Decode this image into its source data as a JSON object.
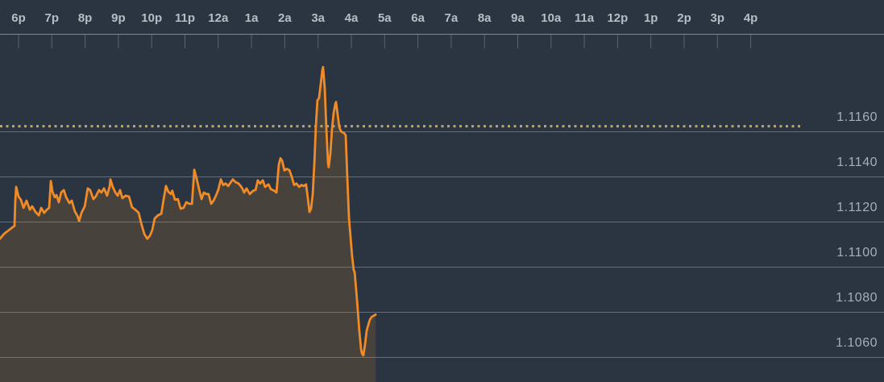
{
  "chart_data": {
    "type": "area",
    "grid": "horizontal",
    "legend": "none",
    "x_axis": {
      "position": "top",
      "tick_interval": "1 hour",
      "tick_labels": [
        "6p",
        "7p",
        "8p",
        "9p",
        "10p",
        "11p",
        "12a",
        "1a",
        "2a",
        "3a",
        "4a",
        "5a",
        "6a",
        "7a",
        "8a",
        "9a",
        "10a",
        "11a",
        "12p",
        "1p",
        "2p",
        "3p",
        "4p"
      ]
    },
    "y_axis": {
      "position": "right",
      "tick_step": 0.002,
      "tick_labels": [
        "1.1160",
        "1.1140",
        "1.1120",
        "1.1100",
        "1.1080",
        "1.1060"
      ]
    },
    "ylim": [
      1.1049,
      1.1203
    ],
    "reference_line": {
      "value": 1.11623,
      "style": "dotted"
    },
    "series": [
      {
        "name": "price",
        "x_unit": "hours_from_6pm",
        "points": [
          [
            -0.56,
            1.11124
          ],
          [
            -0.44,
            1.11145
          ],
          [
            -0.31,
            1.1116
          ],
          [
            -0.19,
            1.11174
          ],
          [
            -0.12,
            1.11181
          ],
          [
            -0.1,
            1.11286
          ],
          [
            -0.07,
            1.11354
          ],
          [
            0.0,
            1.11311
          ],
          [
            0.07,
            1.11297
          ],
          [
            0.15,
            1.11261
          ],
          [
            0.24,
            1.11293
          ],
          [
            0.34,
            1.11253
          ],
          [
            0.41,
            1.11268
          ],
          [
            0.51,
            1.11243
          ],
          [
            0.61,
            1.11228
          ],
          [
            0.68,
            1.11261
          ],
          [
            0.77,
            1.11239
          ],
          [
            0.85,
            1.11253
          ],
          [
            0.92,
            1.11261
          ],
          [
            0.97,
            1.1138
          ],
          [
            1.02,
            1.11333
          ],
          [
            1.09,
            1.11308
          ],
          [
            1.14,
            1.11318
          ],
          [
            1.21,
            1.11286
          ],
          [
            1.28,
            1.11329
          ],
          [
            1.36,
            1.1134
          ],
          [
            1.43,
            1.11308
          ],
          [
            1.53,
            1.11282
          ],
          [
            1.6,
            1.11293
          ],
          [
            1.69,
            1.11246
          ],
          [
            1.77,
            1.11225
          ],
          [
            1.82,
            1.11203
          ],
          [
            1.89,
            1.11239
          ],
          [
            1.99,
            1.11268
          ],
          [
            2.08,
            1.11347
          ],
          [
            2.15,
            1.1134
          ],
          [
            2.25,
            1.113
          ],
          [
            2.32,
            1.11311
          ],
          [
            2.42,
            1.1134
          ],
          [
            2.49,
            1.11329
          ],
          [
            2.57,
            1.11347
          ],
          [
            2.66,
            1.11315
          ],
          [
            2.74,
            1.11358
          ],
          [
            2.76,
            1.11387
          ],
          [
            2.83,
            1.11354
          ],
          [
            2.91,
            1.11329
          ],
          [
            2.98,
            1.11315
          ],
          [
            3.05,
            1.1134
          ],
          [
            3.12,
            1.11304
          ],
          [
            3.22,
            1.11315
          ],
          [
            3.32,
            1.11311
          ],
          [
            3.41,
            1.11264
          ],
          [
            3.51,
            1.11253
          ],
          [
            3.61,
            1.11239
          ],
          [
            3.68,
            1.11196
          ],
          [
            3.78,
            1.11145
          ],
          [
            3.87,
            1.11124
          ],
          [
            3.95,
            1.11138
          ],
          [
            4.02,
            1.11163
          ],
          [
            4.09,
            1.11214
          ],
          [
            4.19,
            1.11228
          ],
          [
            4.29,
            1.11235
          ],
          [
            4.36,
            1.113
          ],
          [
            4.43,
            1.11358
          ],
          [
            4.5,
            1.11333
          ],
          [
            4.58,
            1.11322
          ],
          [
            4.62,
            1.11337
          ],
          [
            4.7,
            1.11297
          ],
          [
            4.79,
            1.113
          ],
          [
            4.87,
            1.11257
          ],
          [
            4.96,
            1.11261
          ],
          [
            5.04,
            1.11286
          ],
          [
            5.13,
            1.11279
          ],
          [
            5.21,
            1.11279
          ],
          [
            5.28,
            1.1143
          ],
          [
            5.35,
            1.11391
          ],
          [
            5.42,
            1.11347
          ],
          [
            5.5,
            1.113
          ],
          [
            5.57,
            1.11329
          ],
          [
            5.64,
            1.11322
          ],
          [
            5.71,
            1.11322
          ],
          [
            5.79,
            1.11279
          ],
          [
            5.86,
            1.11293
          ],
          [
            5.93,
            1.11315
          ],
          [
            6.0,
            1.1134
          ],
          [
            6.08,
            1.11387
          ],
          [
            6.15,
            1.11362
          ],
          [
            6.22,
            1.11369
          ],
          [
            6.3,
            1.11358
          ],
          [
            6.37,
            1.11373
          ],
          [
            6.44,
            1.11387
          ],
          [
            6.51,
            1.11376
          ],
          [
            6.61,
            1.11369
          ],
          [
            6.71,
            1.11351
          ],
          [
            6.78,
            1.11329
          ],
          [
            6.85,
            1.11347
          ],
          [
            6.95,
            1.11322
          ],
          [
            7.05,
            1.11337
          ],
          [
            7.12,
            1.1134
          ],
          [
            7.19,
            1.11383
          ],
          [
            7.26,
            1.11369
          ],
          [
            7.34,
            1.11383
          ],
          [
            7.41,
            1.11354
          ],
          [
            7.51,
            1.11365
          ],
          [
            7.58,
            1.11344
          ],
          [
            7.68,
            1.11337
          ],
          [
            7.75,
            1.11329
          ],
          [
            7.82,
            1.11452
          ],
          [
            7.87,
            1.11481
          ],
          [
            7.92,
            1.1147
          ],
          [
            7.99,
            1.11427
          ],
          [
            8.06,
            1.11434
          ],
          [
            8.14,
            1.11427
          ],
          [
            8.21,
            1.11398
          ],
          [
            8.28,
            1.11362
          ],
          [
            8.35,
            1.11369
          ],
          [
            8.43,
            1.11354
          ],
          [
            8.5,
            1.11362
          ],
          [
            8.57,
            1.11358
          ],
          [
            8.64,
            1.11365
          ],
          [
            8.69,
            1.11308
          ],
          [
            8.74,
            1.11243
          ],
          [
            8.79,
            1.11257
          ],
          [
            8.84,
            1.11322
          ],
          [
            8.89,
            1.11467
          ],
          [
            8.93,
            1.11611
          ],
          [
            8.98,
            1.11737
          ],
          [
            9.03,
            1.11748
          ],
          [
            9.08,
            1.11809
          ],
          [
            9.13,
            1.11874
          ],
          [
            9.15,
            1.11885
          ],
          [
            9.2,
            1.11791
          ],
          [
            9.25,
            1.11611
          ],
          [
            9.3,
            1.11456
          ],
          [
            9.32,
            1.11441
          ],
          [
            9.37,
            1.11503
          ],
          [
            9.42,
            1.11611
          ],
          [
            9.47,
            1.11683
          ],
          [
            9.52,
            1.11723
          ],
          [
            9.54,
            1.1173
          ],
          [
            9.59,
            1.11672
          ],
          [
            9.64,
            1.11618
          ],
          [
            9.69,
            1.116
          ],
          [
            9.73,
            1.11596
          ],
          [
            9.78,
            1.11593
          ],
          [
            9.83,
            1.11582
          ],
          [
            9.88,
            1.11394
          ],
          [
            9.93,
            1.11214
          ],
          [
            9.98,
            1.11124
          ],
          [
            10.02,
            1.11051
          ],
          [
            10.07,
            1.10986
          ],
          [
            10.1,
            1.10976
          ],
          [
            10.15,
            1.10889
          ],
          [
            10.19,
            1.10817
          ],
          [
            10.24,
            1.10716
          ],
          [
            10.29,
            1.10636
          ],
          [
            10.32,
            1.10615
          ],
          [
            10.36,
            1.10607
          ],
          [
            10.41,
            1.10654
          ],
          [
            10.46,
            1.10716
          ],
          [
            10.51,
            1.10744
          ],
          [
            10.56,
            1.10766
          ],
          [
            10.61,
            1.10777
          ],
          [
            10.65,
            1.10781
          ],
          [
            10.73,
            1.10788
          ]
        ]
      }
    ]
  },
  "style": {
    "background": "#2b3541",
    "line_color": "#f08b28",
    "fill_color": "rgba(240,139,40,0.15)",
    "grid_color": "#646e78",
    "axis_line_color": "#7f8893",
    "tick_color": "#5a646e",
    "x_label_color": "#b7bdc4",
    "y_label_color": "#a6aeb8",
    "reference_color": "#bfa45c"
  }
}
